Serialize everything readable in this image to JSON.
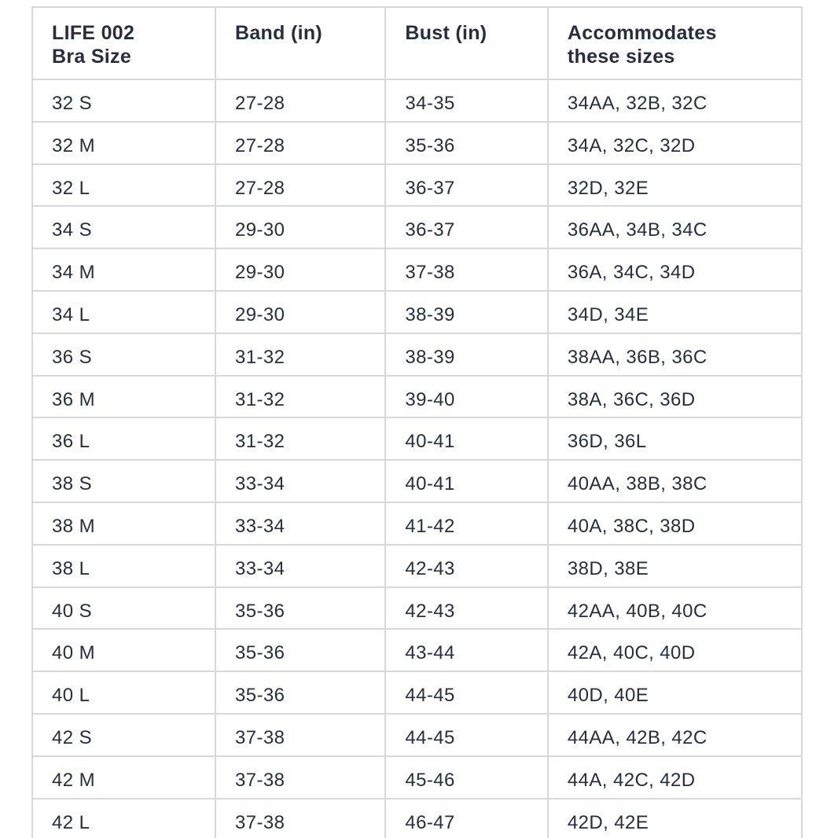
{
  "colors": {
    "text": "#282e3d",
    "border": "#d8d8d8",
    "background": "#ffffff"
  },
  "chart_data": {
    "type": "table",
    "columns": [
      {
        "id": "bra-size",
        "label": "LIFE 002 Bra Size",
        "lines": [
          "LIFE 002",
          "Bra Size"
        ]
      },
      {
        "id": "band-in",
        "label": "Band (in)",
        "lines": [
          "Band (in)"
        ]
      },
      {
        "id": "bust-in",
        "label": "Bust (in)",
        "lines": [
          "Bust (in)"
        ]
      },
      {
        "id": "accommodates",
        "label": "Accommodates these sizes",
        "lines": [
          "Accommodates",
          "these sizes"
        ]
      }
    ],
    "rows": [
      [
        "32 S",
        "27-28",
        "34-35",
        "34AA, 32B, 32C"
      ],
      [
        "32 M",
        "27-28",
        "35-36",
        "34A, 32C, 32D"
      ],
      [
        "32 L",
        "27-28",
        "36-37",
        "32D, 32E"
      ],
      [
        "34 S",
        "29-30",
        "36-37",
        "36AA, 34B, 34C"
      ],
      [
        "34 M",
        "29-30",
        "37-38",
        "36A, 34C, 34D"
      ],
      [
        "34 L",
        "29-30",
        "38-39",
        "34D, 34E"
      ],
      [
        "36 S",
        "31-32",
        "38-39",
        "38AA, 36B, 36C"
      ],
      [
        "36 M",
        "31-32",
        "39-40",
        "38A, 36C, 36D"
      ],
      [
        "36 L",
        "31-32",
        "40-41",
        "36D, 36L"
      ],
      [
        "38 S",
        "33-34",
        "40-41",
        "40AA, 38B, 38C"
      ],
      [
        "38 M",
        "33-34",
        "41-42",
        "40A, 38C, 38D"
      ],
      [
        "38 L",
        "33-34",
        "42-43",
        "38D, 38E"
      ],
      [
        "40 S",
        "35-36",
        "42-43",
        "42AA, 40B, 40C"
      ],
      [
        "40 M",
        "35-36",
        "43-44",
        "42A, 40C, 40D"
      ],
      [
        "40 L",
        "35-36",
        "44-45",
        "40D, 40E"
      ],
      [
        "42 S",
        "37-38",
        "44-45",
        "44AA, 42B, 42C"
      ],
      [
        "42 M",
        "37-38",
        "45-46",
        "44A, 42C, 42D"
      ],
      [
        "42 L",
        "37-38",
        "46-47",
        "42D, 42E"
      ]
    ]
  }
}
